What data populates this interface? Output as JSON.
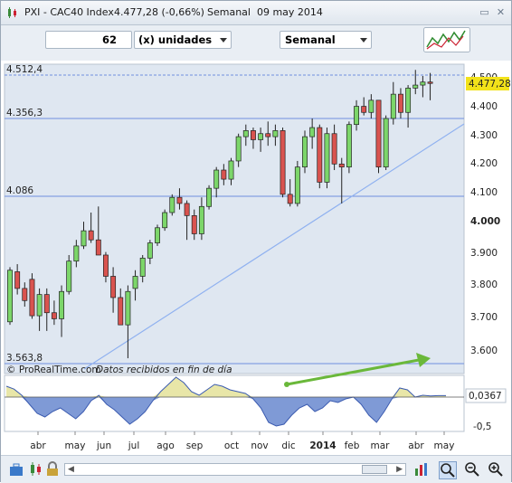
{
  "window": {
    "title_ticker": "PXI - CAC40 Index",
    "title_price": "4.477,28 (-0,66%)",
    "title_period": "Semanal  09 may 2014"
  },
  "toolbar": {
    "units_value": "62",
    "units_label": "(x) unidades",
    "period_label": "Semanal"
  },
  "chart": {
    "hlines": [
      "4.512,4",
      "4.356,3",
      "4.086",
      "3.563,8"
    ],
    "yticks": [
      "4.500",
      "4.400",
      "4.300",
      "4.200",
      "4.100",
      "4.000",
      "3.900",
      "3.800",
      "3.700",
      "3.600"
    ],
    "last_price": "4.477,28",
    "credit": "© ProRealTime.com",
    "credit_note": "Datos recibidos en fin de día",
    "indicator_value": "0,0367",
    "indicator_tick": "-0,5",
    "months": [
      "abr",
      "may",
      "jun",
      "jul",
      "ago",
      "sep",
      "oct",
      "nov",
      "dic",
      "2014",
      "feb",
      "mar",
      "abr",
      "may"
    ]
  },
  "colors": {
    "up": "#7cd66a",
    "down": "#d9534f",
    "hline": "#6f8fe0",
    "trend": "#8fb1f0",
    "arrow": "#6ab83a",
    "osc_pos": "#e8e6a8",
    "osc_neg": "#7f9ad6",
    "price_tag": "#f2e21a"
  },
  "icons": [
    "candlestick-chart-icon",
    "close-icon",
    "minimize-icon",
    "lock-icon",
    "zoom-in-icon",
    "zoom-out-icon"
  ]
}
